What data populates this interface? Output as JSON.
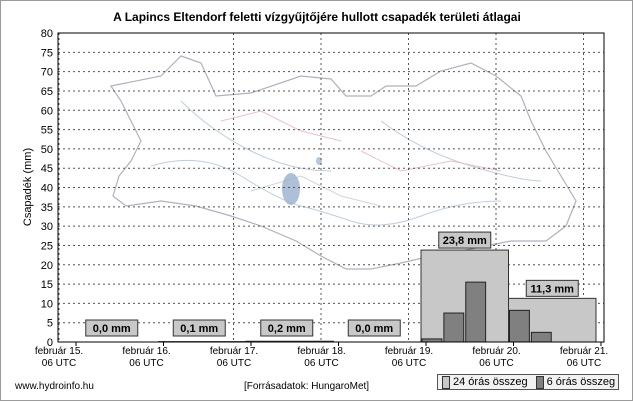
{
  "footer": {
    "site": "www.hydroinfo.hu",
    "source": "[Forrásadatok: HungaroMet]"
  },
  "legend": {
    "items": [
      {
        "label": "24 órás összeg",
        "color": "#c8c8c8"
      },
      {
        "label": "6 órás összeg",
        "color": "#808080"
      }
    ]
  },
  "colors": {
    "bar24": "#c8c8c8",
    "bar6": "#808080",
    "label_box": "#c8c8c8",
    "grid": "#555555"
  },
  "chart_data": {
    "type": "bar",
    "title": "A Lapincs Eltendorf feletti vízgyűjtőjére hullott csapadék területi átlagai",
    "ylabel": "Csapadék (mm)",
    "xlabel": "",
    "ylim": [
      0,
      80
    ],
    "yticks": [
      0,
      5,
      10,
      15,
      20,
      25,
      30,
      35,
      40,
      45,
      50,
      55,
      60,
      65,
      70,
      75,
      80
    ],
    "grid": true,
    "legend_position": "bottom-right",
    "x_ticks": [
      {
        "date": "február 15.",
        "time": "06 UTC"
      },
      {
        "date": "február 16.",
        "time": "06 UTC"
      },
      {
        "date": "február 17.",
        "time": "06 UTC"
      },
      {
        "date": "február 18.",
        "time": "06 UTC"
      },
      {
        "date": "február 19.",
        "time": "06 UTC"
      },
      {
        "date": "február 20.",
        "time": "06 UTC"
      },
      {
        "date": "február 21.",
        "time": "06 UTC"
      }
    ],
    "series": [
      {
        "name": "24 órás összeg",
        "values": [
          0.0,
          0.1,
          0.2,
          0.0,
          23.8,
          11.3
        ],
        "labels": [
          "0,0 mm",
          "0,1 mm",
          "0,2 mm",
          "0,0 mm",
          "23,8 mm",
          "11,3 mm"
        ]
      },
      {
        "name": "6 órás összeg",
        "values": [
          0,
          0,
          0,
          0,
          0,
          0,
          0,
          0,
          0,
          0,
          0,
          0,
          0,
          0,
          0,
          0,
          0.8,
          7.5,
          15.5,
          0,
          8.2,
          2.5,
          0,
          0
        ]
      }
    ]
  }
}
